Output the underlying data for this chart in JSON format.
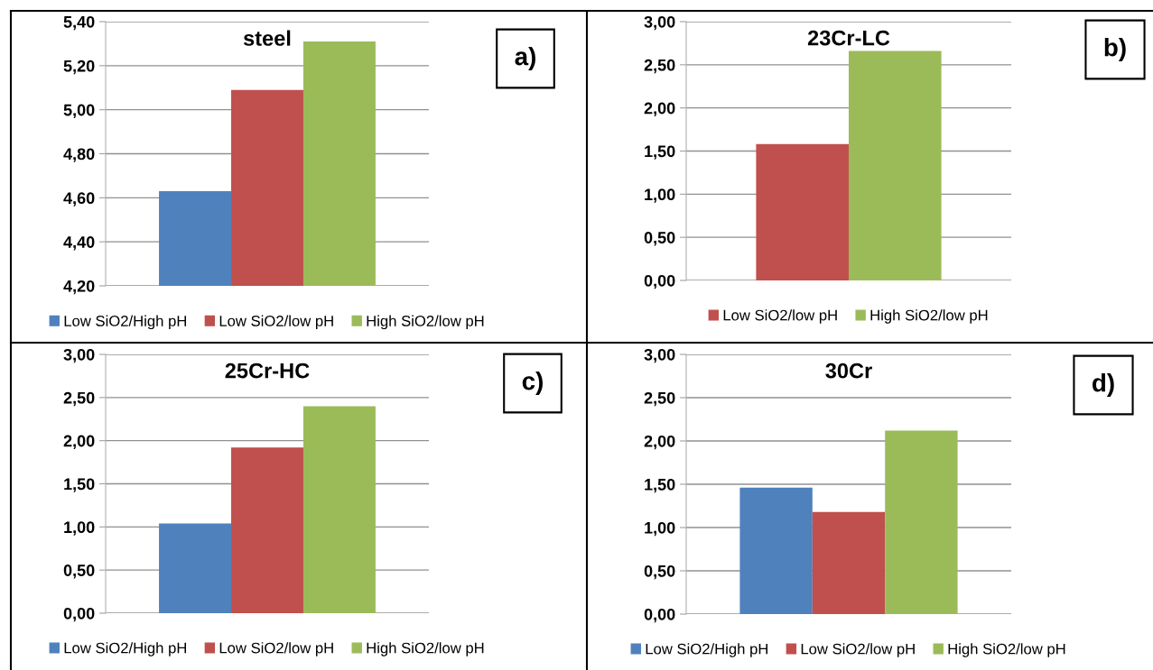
{
  "chart_data": [
    {
      "type": "bar",
      "title": "steel",
      "categories": [
        null
      ],
      "series": [
        {
          "name": "Low SiO2/High pH",
          "color": "#4f81bd",
          "values": [
            4.63
          ]
        },
        {
          "name": "Low SiO2/low pH",
          "color": "#c0504d",
          "values": [
            5.09
          ]
        },
        {
          "name": "High SiO2/low pH",
          "color": "#9bbb59",
          "values": [
            5.31
          ]
        }
      ],
      "ylim": [
        4.2,
        5.4
      ],
      "yticks": [
        {
          "value": 4.2,
          "label": "4,20"
        },
        {
          "value": 4.4,
          "label": "4,40"
        },
        {
          "value": 4.6,
          "label": "4,60"
        },
        {
          "value": 4.8,
          "label": "4,80"
        },
        {
          "value": 5.0,
          "label": "5,00"
        },
        {
          "value": 5.2,
          "label": "5,20"
        },
        {
          "value": 5.4,
          "label": "5,40"
        }
      ],
      "grid": "y",
      "legend": "bottom",
      "annotations": [
        "a)"
      ]
    },
    {
      "type": "bar",
      "title": "23Cr-LC",
      "categories": [
        null
      ],
      "series": [
        {
          "name": "Low SiO2/low pH",
          "color": "#c0504d",
          "values": [
            1.58
          ]
        },
        {
          "name": "High SiO2/low pH",
          "color": "#9bbb59",
          "values": [
            2.66
          ]
        }
      ],
      "ylim": [
        0,
        3
      ],
      "yticks": [
        {
          "value": 0,
          "label": "0,00"
        },
        {
          "value": 0.5,
          "label": "0,50"
        },
        {
          "value": 1.0,
          "label": "1,00"
        },
        {
          "value": 1.5,
          "label": "1,50"
        },
        {
          "value": 2.0,
          "label": "2,00"
        },
        {
          "value": 2.5,
          "label": "2,50"
        },
        {
          "value": 3.0,
          "label": "3,00"
        }
      ],
      "grid": "y",
      "legend": "bottom",
      "annotations": [
        "b)"
      ]
    },
    {
      "type": "bar",
      "title": "25Cr-HC",
      "categories": [
        null
      ],
      "series": [
        {
          "name": "Low SiO2/High pH",
          "color": "#4f81bd",
          "values": [
            1.04
          ]
        },
        {
          "name": "Low SiO2/low pH",
          "color": "#c0504d",
          "values": [
            1.92
          ]
        },
        {
          "name": "High SiO2/low pH",
          "color": "#9bbb59",
          "values": [
            2.4
          ]
        }
      ],
      "ylim": [
        0,
        3
      ],
      "yticks": [
        {
          "value": 0,
          "label": "0,00"
        },
        {
          "value": 0.5,
          "label": "0,50"
        },
        {
          "value": 1.0,
          "label": "1,00"
        },
        {
          "value": 1.5,
          "label": "1,50"
        },
        {
          "value": 2.0,
          "label": "2,00"
        },
        {
          "value": 2.5,
          "label": "2,50"
        },
        {
          "value": 3.0,
          "label": "3,00"
        }
      ],
      "grid": "y",
      "legend": "bottom",
      "annotations": [
        "c)"
      ]
    },
    {
      "type": "bar",
      "title": "30Cr",
      "categories": [
        null
      ],
      "series": [
        {
          "name": "Low SiO2/High pH",
          "color": "#4f81bd",
          "values": [
            1.46
          ]
        },
        {
          "name": "Low SiO2/low pH",
          "color": "#c0504d",
          "values": [
            1.18
          ]
        },
        {
          "name": "High SiO2/low pH",
          "color": "#9bbb59",
          "values": [
            2.12
          ]
        }
      ],
      "ylim": [
        0,
        3
      ],
      "yticks": [
        {
          "value": 0,
          "label": "0,00"
        },
        {
          "value": 0.5,
          "label": "0,50"
        },
        {
          "value": 1.0,
          "label": "1,00"
        },
        {
          "value": 1.5,
          "label": "1,50"
        },
        {
          "value": 2.0,
          "label": "2,00"
        },
        {
          "value": 2.5,
          "label": "2,50"
        },
        {
          "value": 3.0,
          "label": "3,00"
        }
      ],
      "grid": "y",
      "legend": "bottom",
      "annotations": [
        "d)"
      ]
    }
  ]
}
